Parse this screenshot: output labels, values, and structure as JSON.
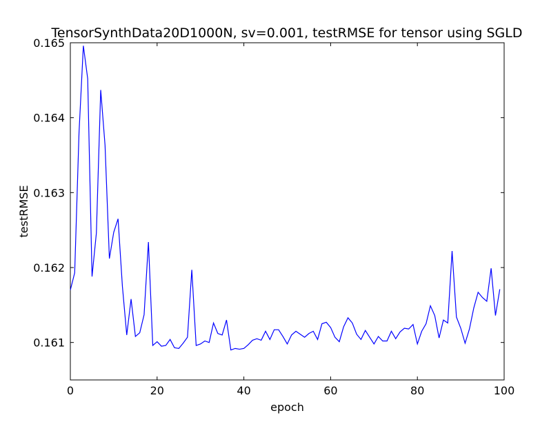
{
  "chart_data": {
    "type": "line",
    "title": "TensorSynthData20D1000N, sv=0.001, testRMSE for tensor using SGLD",
    "xlabel": "epoch",
    "ylabel": "testRMSE",
    "xlim": [
      0,
      100
    ],
    "ylim": [
      0.1605,
      0.165
    ],
    "x_ticks": [
      0,
      20,
      40,
      60,
      80,
      100
    ],
    "x_tick_labels": [
      "0",
      "20",
      "40",
      "60",
      "80",
      "100"
    ],
    "y_ticks": [
      0.161,
      0.162,
      0.163,
      0.164,
      0.165
    ],
    "y_tick_labels": [
      "0.161",
      "0.162",
      "0.163",
      "0.164",
      "0.165"
    ],
    "grid": false,
    "line_color": "#0000ff",
    "series": [
      {
        "x": [
          0,
          1,
          2,
          3,
          4,
          5,
          6,
          7,
          8,
          9,
          10,
          11,
          12,
          13,
          14,
          15,
          16,
          17,
          18,
          19,
          20,
          21,
          22,
          23,
          24,
          25,
          26,
          27,
          28,
          29,
          30,
          31,
          32,
          33,
          34,
          35,
          36,
          37,
          38,
          39,
          40,
          41,
          42,
          43,
          44,
          45,
          46,
          47,
          48,
          49,
          50,
          51,
          52,
          53,
          54,
          55,
          56,
          57,
          58,
          59,
          60,
          61,
          62,
          63,
          64,
          65,
          66,
          67,
          68,
          69,
          70,
          71,
          72,
          73,
          74,
          75,
          76,
          77,
          78,
          79,
          80,
          81,
          82,
          83,
          84,
          85,
          86,
          87,
          88,
          89,
          90,
          91,
          92,
          93,
          94,
          95,
          96,
          97,
          98,
          99
        ],
        "values": [
          0.1617,
          0.16193,
          0.1638,
          0.16496,
          0.16452,
          0.16188,
          0.16246,
          0.16437,
          0.16363,
          0.16212,
          0.16247,
          0.16265,
          0.16175,
          0.1611,
          0.16158,
          0.16108,
          0.16113,
          0.16137,
          0.16234,
          0.16096,
          0.16101,
          0.16095,
          0.16096,
          0.16104,
          0.16093,
          0.16092,
          0.16099,
          0.16107,
          0.16197,
          0.16096,
          0.16098,
          0.16102,
          0.161,
          0.16126,
          0.16112,
          0.1611,
          0.1613,
          0.1609,
          0.16092,
          0.16091,
          0.16092,
          0.16097,
          0.16103,
          0.16105,
          0.16103,
          0.16115,
          0.16104,
          0.16117,
          0.16117,
          0.16108,
          0.16098,
          0.1611,
          0.16115,
          0.16111,
          0.16107,
          0.16112,
          0.16115,
          0.16104,
          0.16125,
          0.16127,
          0.1612,
          0.16107,
          0.16101,
          0.16121,
          0.16133,
          0.16126,
          0.16111,
          0.16104,
          0.16116,
          0.16107,
          0.16098,
          0.16108,
          0.16102,
          0.16102,
          0.16115,
          0.16105,
          0.16114,
          0.16119,
          0.16118,
          0.16124,
          0.16098,
          0.16115,
          0.16125,
          0.16149,
          0.16136,
          0.16106,
          0.1613,
          0.16126,
          0.16222,
          0.16134,
          0.16119,
          0.16099,
          0.16118,
          0.16146,
          0.16167,
          0.1616,
          0.16155,
          0.16199,
          0.16136,
          0.16171
        ]
      }
    ]
  }
}
